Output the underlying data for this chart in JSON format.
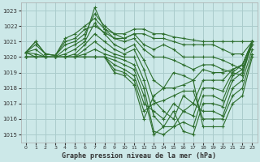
{
  "title": "Graphe pression niveau de la mer (hPa)",
  "background_color": "#cce8e8",
  "grid_color": "#aacccc",
  "line_color": "#2d6e2d",
  "xlim": [
    0,
    23
  ],
  "ylim": [
    1014.5,
    1023.5
  ],
  "yticks": [
    1015,
    1016,
    1017,
    1018,
    1019,
    1020,
    1021,
    1022,
    1023
  ],
  "xticks": [
    0,
    1,
    2,
    3,
    4,
    5,
    6,
    7,
    8,
    9,
    10,
    11,
    12,
    13,
    14,
    15,
    16,
    17,
    18,
    19,
    20,
    21,
    22,
    23
  ],
  "series": [
    [
      1020.3,
      1021.0,
      1020.2,
      1020.1,
      1021.2,
      1021.5,
      1022.0,
      1022.5,
      1021.8,
      1021.5,
      1021.5,
      1021.8,
      1021.8,
      1021.5,
      1021.5,
      1021.3,
      1021.2,
      1021.1,
      1021.0,
      1021.0,
      1021.0,
      1021.0,
      1021.0,
      1021.0
    ],
    [
      1020.3,
      1021.0,
      1020.2,
      1020.1,
      1021.0,
      1021.2,
      1021.8,
      1022.0,
      1021.6,
      1021.2,
      1021.2,
      1021.5,
      1021.5,
      1021.2,
      1021.2,
      1021.0,
      1020.8,
      1020.8,
      1020.8,
      1020.8,
      1020.5,
      1020.2,
      1020.2,
      1021.0
    ],
    [
      1020.3,
      1020.8,
      1020.2,
      1020.1,
      1020.8,
      1021.0,
      1021.5,
      1022.8,
      1022.0,
      1021.5,
      1021.2,
      1021.5,
      1020.8,
      1020.5,
      1020.8,
      1020.5,
      1020.0,
      1020.0,
      1020.0,
      1020.0,
      1019.8,
      1019.5,
      1019.2,
      1020.8
    ],
    [
      1020.3,
      1020.5,
      1020.0,
      1020.0,
      1020.5,
      1020.8,
      1021.2,
      1023.2,
      1021.8,
      1021.2,
      1021.0,
      1021.2,
      1020.5,
      1020.0,
      1020.0,
      1019.8,
      1019.5,
      1019.2,
      1019.5,
      1019.5,
      1019.2,
      1019.0,
      1018.8,
      1021.0
    ],
    [
      1020.3,
      1020.2,
      1020.0,
      1020.0,
      1020.2,
      1020.5,
      1021.0,
      1022.2,
      1021.5,
      1020.8,
      1020.5,
      1020.8,
      1019.8,
      1018.5,
      1018.0,
      1019.0,
      1018.8,
      1018.5,
      1019.2,
      1019.0,
      1019.0,
      1019.2,
      1019.5,
      1021.0
    ],
    [
      1020.3,
      1020.0,
      1020.0,
      1020.0,
      1020.0,
      1020.2,
      1020.8,
      1021.5,
      1021.0,
      1020.5,
      1020.2,
      1020.5,
      1019.2,
      1017.2,
      1016.5,
      1016.0,
      1017.5,
      1017.0,
      1018.5,
      1018.5,
      1018.5,
      1019.2,
      1019.5,
      1021.0
    ],
    [
      1020.0,
      1020.0,
      1020.0,
      1020.0,
      1020.0,
      1020.0,
      1020.5,
      1021.0,
      1020.5,
      1020.2,
      1020.0,
      1020.0,
      1018.5,
      1016.2,
      1015.5,
      1015.5,
      1016.5,
      1016.2,
      1018.0,
      1018.0,
      1017.8,
      1019.0,
      1019.5,
      1021.0
    ],
    [
      1020.0,
      1020.0,
      1020.0,
      1020.0,
      1020.0,
      1020.0,
      1020.2,
      1020.5,
      1020.2,
      1020.0,
      1019.8,
      1019.5,
      1018.0,
      1015.2,
      1015.0,
      1015.5,
      1015.8,
      1015.5,
      1017.5,
      1017.5,
      1017.2,
      1018.8,
      1019.2,
      1021.0
    ],
    [
      1020.0,
      1020.0,
      1020.0,
      1020.0,
      1020.0,
      1020.0,
      1020.0,
      1020.0,
      1020.0,
      1019.8,
      1019.5,
      1019.2,
      1017.5,
      1015.0,
      1015.5,
      1016.5,
      1015.2,
      1015.0,
      1017.0,
      1017.0,
      1016.8,
      1018.5,
      1019.0,
      1020.8
    ],
    [
      1020.0,
      1020.0,
      1020.0,
      1020.0,
      1020.0,
      1020.0,
      1020.0,
      1020.0,
      1020.0,
      1019.5,
      1019.2,
      1018.8,
      1017.0,
      1016.5,
      1016.0,
      1017.0,
      1016.5,
      1017.0,
      1016.5,
      1016.5,
      1016.2,
      1018.0,
      1018.5,
      1020.5
    ],
    [
      1020.0,
      1020.0,
      1020.0,
      1020.0,
      1020.0,
      1020.0,
      1020.0,
      1020.0,
      1020.0,
      1019.2,
      1019.0,
      1018.5,
      1016.5,
      1017.0,
      1017.2,
      1017.5,
      1017.8,
      1017.8,
      1016.0,
      1016.0,
      1016.0,
      1017.5,
      1018.0,
      1020.2
    ],
    [
      1020.0,
      1020.0,
      1020.0,
      1020.0,
      1020.0,
      1020.0,
      1020.0,
      1020.0,
      1020.0,
      1019.0,
      1018.8,
      1018.2,
      1016.0,
      1017.5,
      1018.0,
      1018.0,
      1018.2,
      1018.5,
      1015.5,
      1015.5,
      1015.5,
      1017.0,
      1017.5,
      1020.0
    ]
  ]
}
